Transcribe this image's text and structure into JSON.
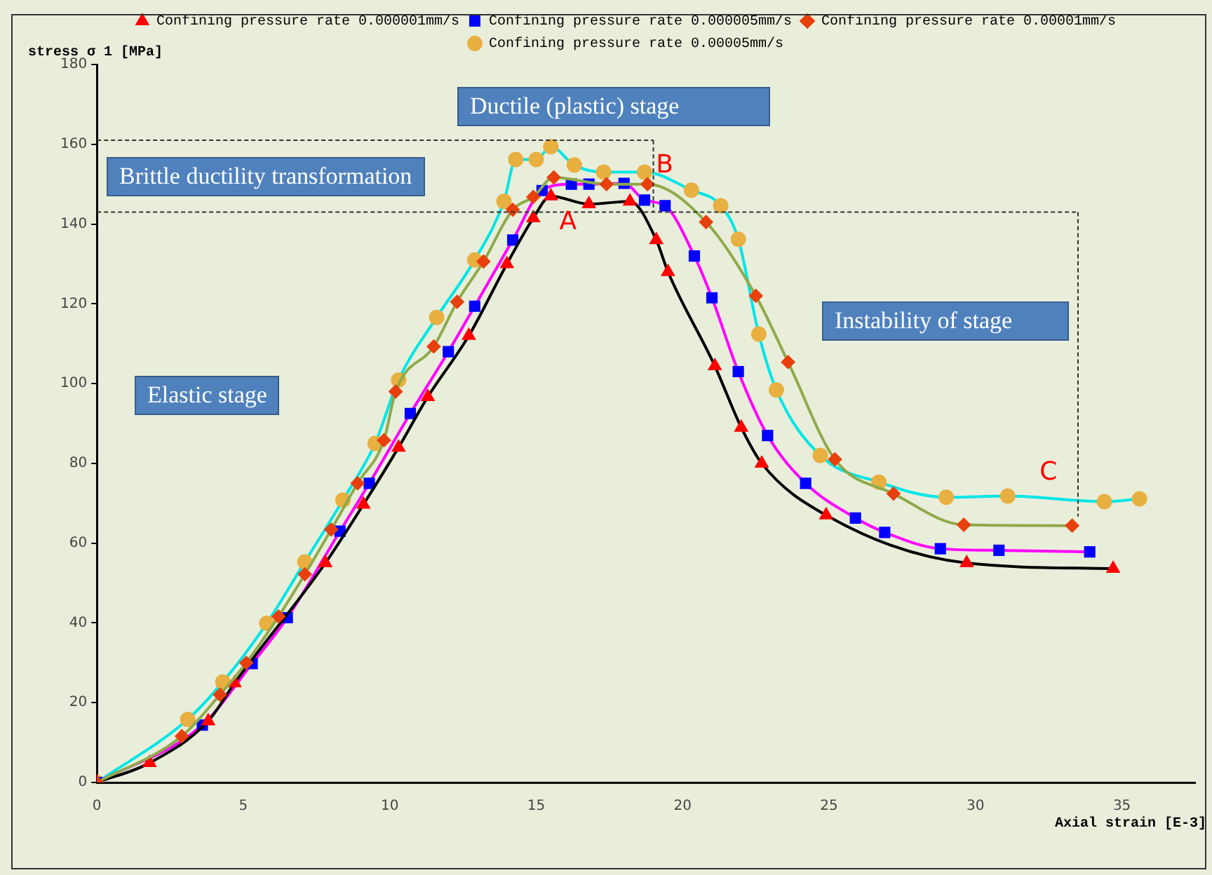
{
  "chart_data": {
    "type": "line",
    "xlabel": "Axial strain [E-3]",
    "ylabel": "stress σ 1 [MPa]",
    "xlim": [
      0,
      37.5
    ],
    "ylim": [
      0,
      180
    ],
    "xticks": [
      0,
      5,
      10,
      15,
      20,
      25,
      30,
      35
    ],
    "yticks": [
      0,
      20,
      40,
      60,
      80,
      100,
      120,
      140,
      160,
      180
    ],
    "grid": false,
    "legend": "top",
    "ref_lines": [
      {
        "axis": "y",
        "value": 161,
        "color": "#333333",
        "line_style": "dashed"
      },
      {
        "axis": "x",
        "value": 19,
        "color": "#333333",
        "line_style": "dashed"
      },
      {
        "axis": "y",
        "value": 143,
        "color": "#333333",
        "line_style": "dashed"
      },
      {
        "axis": "x",
        "value": 33.5,
        "color": "#333333",
        "line_style": "dashed"
      }
    ],
    "series": [
      {
        "name": "Confining pressure rate 0.000001mm/s",
        "color": "#ff0000",
        "marker": "triangle",
        "x": [
          0,
          1.8,
          3.8,
          4.7,
          7.8,
          9.1,
          10.3,
          11.3,
          12.7,
          14.0,
          14.9,
          15.5,
          16.8,
          18.2,
          19.1,
          19.5,
          21.1,
          22.0,
          22.7,
          24.9,
          29.7,
          34.7
        ],
        "values": [
          0,
          4.9,
          15.4,
          24.9,
          55,
          69.7,
          84,
          96.7,
          112,
          130,
          141.5,
          147,
          145,
          145.7,
          136,
          128,
          104.4,
          89,
          80,
          67,
          55,
          53.6
        ]
      },
      {
        "name": "Confining pressure rate 0.000005mm/s",
        "color": "#0000ff",
        "marker": "square",
        "x": [
          0,
          3.6,
          5.3,
          6.5,
          8.3,
          9.3,
          10.7,
          12.0,
          12.9,
          14.2,
          15.2,
          16.2,
          16.8,
          18.0,
          18.7,
          19.4,
          20.4,
          21.0,
          21.9,
          22.9,
          24.2,
          25.9,
          26.9,
          28.8,
          30.8,
          33.9
        ],
        "values": [
          0,
          14.4,
          29.8,
          41.3,
          63,
          75,
          92.5,
          108,
          119.4,
          136,
          148.4,
          150,
          150,
          150.2,
          146,
          144.6,
          132,
          121.5,
          103,
          87,
          75,
          66.3,
          62.7,
          58.6,
          58.2,
          57.8
        ]
      },
      {
        "name": "Confining pressure rate 0.00001mm/s",
        "color": "#e8400d",
        "marker": "diamond",
        "x": [
          0,
          2.9,
          4.2,
          5.1,
          6.2,
          7.1,
          8.0,
          8.9,
          9.8,
          10.2,
          11.5,
          12.3,
          13.2,
          14.2,
          14.9,
          15.6,
          17.4,
          18.8,
          20.8,
          22.5,
          23.6,
          25.2,
          27.2,
          29.6,
          33.3
        ],
        "values": [
          0,
          11.6,
          22,
          30,
          41.6,
          52.2,
          63.4,
          75,
          85.8,
          98,
          109.3,
          120.5,
          130.6,
          143.6,
          146.8,
          151.7,
          150,
          150,
          140.5,
          122,
          105.4,
          81,
          72.4,
          64.6,
          64.4
        ]
      },
      {
        "name": "Confining pressure rate 0.00005mm/s",
        "color": "#e8b040",
        "marker": "circle",
        "x": [
          0,
          3.1,
          4.3,
          5.8,
          7.1,
          8.4,
          9.5,
          10.3,
          11.6,
          12.9,
          13.9,
          14.3,
          15.0,
          15.5,
          16.3,
          17.3,
          18.7,
          20.3,
          21.3,
          21.9,
          22.6,
          23.2,
          24.7,
          26.7,
          29.0,
          31.1,
          34.4,
          35.6
        ],
        "values": [
          0,
          15.8,
          25.2,
          39.9,
          55.3,
          70.8,
          85,
          100.9,
          116.6,
          131,
          145.7,
          156.2,
          156.2,
          159.4,
          154.8,
          153,
          153,
          148.5,
          144.6,
          136.2,
          112.4,
          98.4,
          82,
          75.3,
          71.5,
          71.8,
          70.4,
          71.1
        ]
      }
    ],
    "annotations": [
      "Ductile (plastic) stage",
      "Brittle ductility transformation",
      "Elastic stage",
      "Instability of stage",
      {
        "text": "A",
        "x": 15.5,
        "y": 147
      },
      {
        "text": "B",
        "x": 18.8,
        "y": 150
      },
      {
        "text": "C",
        "x": 31.9,
        "y": 71.6
      }
    ]
  }
}
